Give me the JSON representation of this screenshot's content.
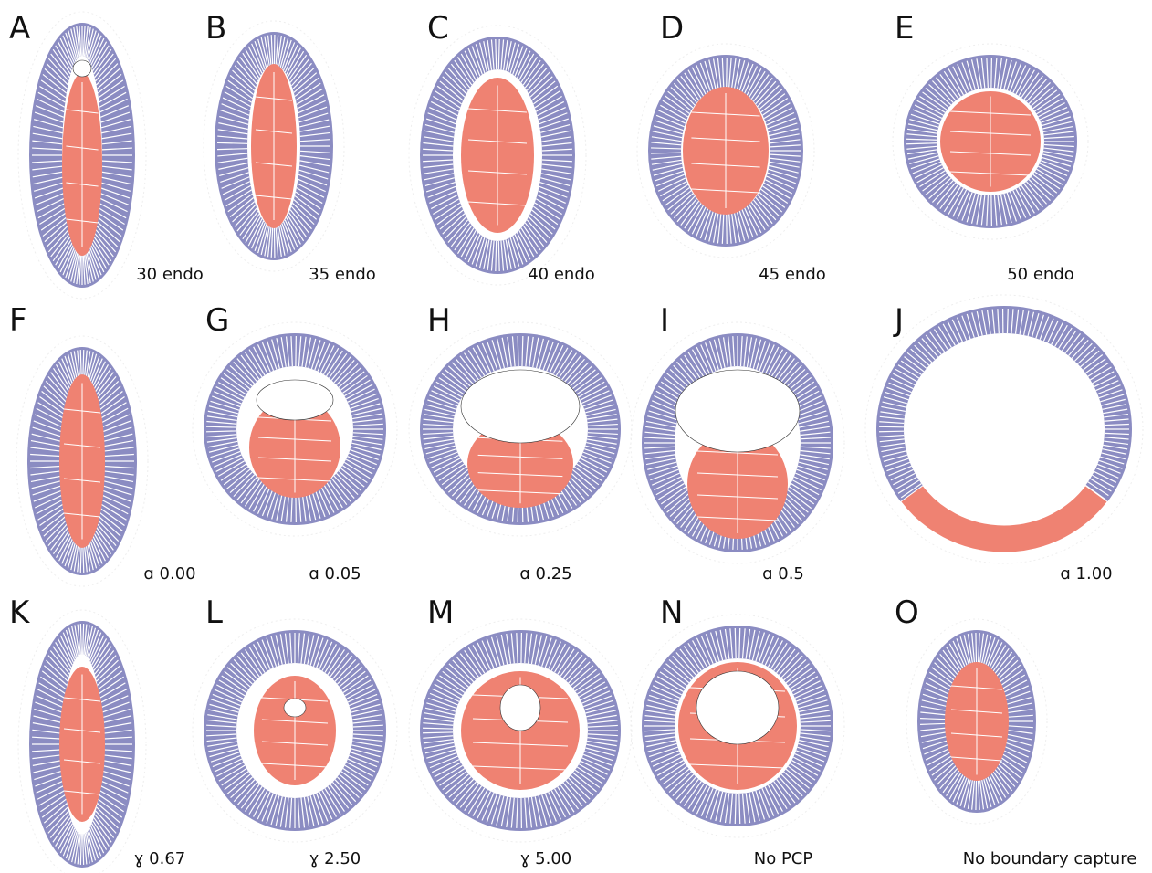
{
  "panels": [
    {
      "letter": "A",
      "caption": "30 endo"
    },
    {
      "letter": "B",
      "caption": "35 endo"
    },
    {
      "letter": "C",
      "caption": "40 endo"
    },
    {
      "letter": "D",
      "caption": "45 endo"
    },
    {
      "letter": "E",
      "caption": "50 endo"
    },
    {
      "letter": "F",
      "caption": "ɑ 0.00"
    },
    {
      "letter": "G",
      "caption": "ɑ 0.05"
    },
    {
      "letter": "H",
      "caption": "ɑ 0.25"
    },
    {
      "letter": "I",
      "caption": "ɑ 0.5"
    },
    {
      "letter": "J",
      "caption": "ɑ 1.00"
    },
    {
      "letter": "K",
      "caption": "ɣ 0.67"
    },
    {
      "letter": "L",
      "caption": "ɣ 2.50"
    },
    {
      "letter": "M",
      "caption": "ɣ 5.00"
    },
    {
      "letter": "N",
      "caption": "No PCP"
    },
    {
      "letter": "O",
      "caption": "No boundary capture"
    }
  ]
}
